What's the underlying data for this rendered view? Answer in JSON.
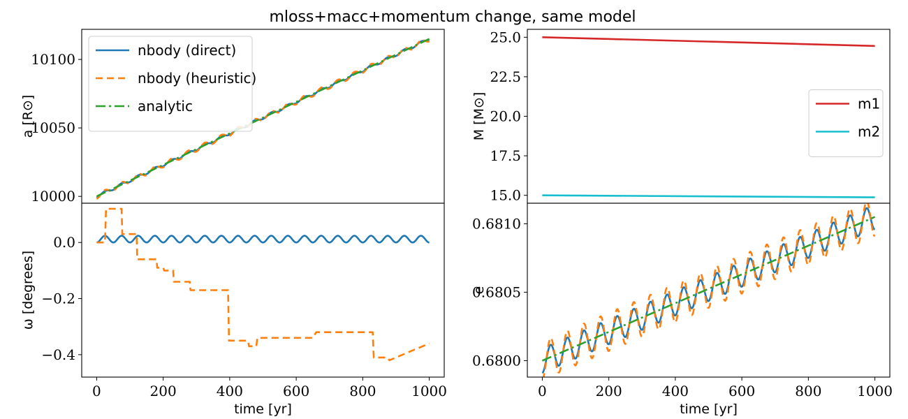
{
  "figure_title": "mloss+macc+momentum change, same model",
  "colors": {
    "direct": "#1f77b4",
    "heuristic": "#ff7f0e",
    "analytic": "#2ca02c",
    "m1": "#d62728",
    "m2": "#17becf"
  },
  "chart_data": [
    {
      "type": "line",
      "panel": "top-left",
      "xlabel": "",
      "ylabel": "a [R⊙]",
      "ylim": [
        9995,
        10122
      ],
      "yticks": [
        10000,
        10050,
        10100
      ],
      "legend": "top-left",
      "series": [
        {
          "name": "nbody (direct)",
          "style": "solid",
          "color": "#1f77b4",
          "x": [
            0,
            1000
          ],
          "y": [
            10000,
            10115
          ],
          "wiggle_amp": 1.0
        },
        {
          "name": "nbody (heuristic)",
          "style": "dashed",
          "color": "#ff7f0e",
          "x": [
            0,
            1000
          ],
          "y": [
            10000,
            10115
          ],
          "wiggle_amp": 1.8
        },
        {
          "name": "analytic",
          "style": "dashdot",
          "color": "#2ca02c",
          "x": [
            0,
            1000
          ],
          "y": [
            10000,
            10115
          ]
        }
      ]
    },
    {
      "type": "line",
      "panel": "top-right",
      "xlabel": "",
      "ylabel": "M [M⊙]",
      "ylim": [
        14.5,
        25.5
      ],
      "yticks": [
        15.0,
        17.5,
        20.0,
        22.5,
        25.0
      ],
      "legend": "center-right",
      "series": [
        {
          "name": "m1",
          "style": "solid",
          "color": "#d62728",
          "x": [
            0,
            1000
          ],
          "y": [
            25.0,
            24.45
          ]
        },
        {
          "name": "m2",
          "style": "solid",
          "color": "#17becf",
          "x": [
            0,
            1000
          ],
          "y": [
            15.0,
            14.87
          ]
        }
      ]
    },
    {
      "type": "line",
      "panel": "bottom-left",
      "xlabel": "time [yr]",
      "ylabel": "ω [degrees]",
      "xlim": [
        -45,
        1045
      ],
      "xticks": [
        0,
        200,
        400,
        600,
        800,
        1000
      ],
      "ylim": [
        -0.48,
        0.14
      ],
      "yticks": [
        0.0,
        -0.2,
        -0.4
      ],
      "series": [
        {
          "name": "nbody (direct)",
          "style": "solid",
          "color": "#1f77b4",
          "x": [
            0,
            1000
          ],
          "y": [
            0.0,
            0.0
          ],
          "wiggle_amp": 0.012
        },
        {
          "name": "nbody (heuristic)",
          "style": "dashed",
          "color": "#ff7f0e",
          "x": [
            0,
            25,
            28,
            75,
            77,
            120,
            122,
            180,
            182,
            200,
            203,
            230,
            232,
            280,
            282,
            320,
            322,
            395,
            398,
            455,
            458,
            480,
            483,
            650,
            660,
            720,
            725,
            830,
            833,
            875,
            880,
            1000
          ],
          "y": [
            0.0,
            0.0,
            0.12,
            0.12,
            0.03,
            0.03,
            -0.06,
            -0.06,
            -0.09,
            -0.09,
            -0.1,
            -0.1,
            -0.14,
            -0.14,
            -0.17,
            -0.17,
            -0.17,
            -0.17,
            -0.35,
            -0.35,
            -0.37,
            -0.37,
            -0.34,
            -0.34,
            -0.32,
            -0.32,
            -0.32,
            -0.32,
            -0.41,
            -0.41,
            -0.42,
            -0.36
          ]
        }
      ]
    },
    {
      "type": "line",
      "panel": "bottom-right",
      "xlabel": "time [yr]",
      "ylabel": "e",
      "xlim": [
        -45,
        1045
      ],
      "xticks": [
        0,
        200,
        400,
        600,
        800,
        1000
      ],
      "ylim": [
        0.67988,
        0.68115
      ],
      "yticks": [
        0.68,
        0.6805,
        0.681
      ],
      "ytick_labels": [
        "0.6800",
        "0.6805",
        "0.6810"
      ],
      "series": [
        {
          "name": "nbody (direct)",
          "style": "solid",
          "color": "#1f77b4",
          "x": [
            0,
            1000
          ],
          "y": [
            0.68,
            0.68105
          ],
          "wiggle_amp": 9e-05
        },
        {
          "name": "nbody (heuristic)",
          "style": "dashed",
          "color": "#ff7f0e",
          "x": [
            0,
            1000
          ],
          "y": [
            0.68,
            0.68105
          ],
          "wiggle_amp": 0.00014
        },
        {
          "name": "analytic",
          "style": "dashdot",
          "color": "#2ca02c",
          "x": [
            0,
            1000
          ],
          "y": [
            0.68,
            0.68105
          ]
        }
      ]
    }
  ]
}
